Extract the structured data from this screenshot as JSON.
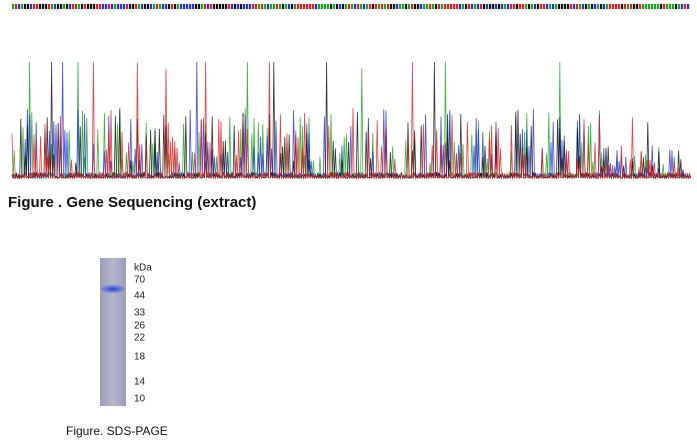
{
  "figures": [
    {
      "caption": "Figure . Gene Sequencing (extract)"
    },
    {
      "caption": "Figure. SDS-PAGE",
      "unit_label": "kDa",
      "markers": [
        "70",
        "44",
        "33",
        "26",
        "22",
        "18",
        "14",
        "10"
      ]
    }
  ]
}
